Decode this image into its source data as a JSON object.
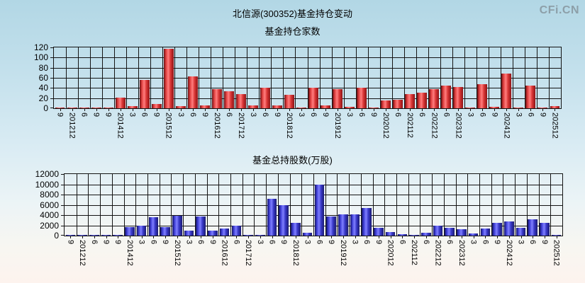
{
  "page": {
    "watermark": "CFi.CN",
    "title": "北信源(300352)基金持仓变动",
    "background_top_color": "#b2d7e5",
    "background_bottom_color": "#fdf3ee",
    "grid_color": "#141414"
  },
  "chart_data": [
    {
      "type": "bar",
      "title": "基金持仓家数",
      "ylabel": "",
      "xlabel": "",
      "grid": true,
      "legend": "none",
      "ylim": [
        0,
        120
      ],
      "yticks": [
        0,
        20,
        40,
        60,
        80,
        100,
        120
      ],
      "bar_gradient": [
        "#6a0e10",
        "#e04040",
        "#ff7d7d",
        "#d93535",
        "#8c1416"
      ],
      "bar_color": "#dd2222",
      "categories": [
        "9",
        "201212",
        "6",
        "9",
        "9",
        "201412",
        "3",
        "6",
        "9",
        "201512",
        "3",
        "6",
        "9",
        "201612",
        "6",
        "201712",
        "3",
        "6",
        "9",
        "201812",
        "3",
        "6",
        "9",
        "201912",
        "3",
        "6",
        "9",
        "202012",
        "6",
        "202112",
        "6",
        "202212",
        "6",
        "202312",
        "3",
        "6",
        "9",
        "202412",
        "3",
        "6",
        "9",
        "202512"
      ],
      "values": [
        1,
        1,
        1,
        1,
        2,
        21,
        4,
        56,
        8,
        117,
        4,
        63,
        6,
        37,
        33,
        28,
        5,
        40,
        5,
        27,
        2,
        41,
        5,
        38,
        3,
        41,
        2,
        16,
        17,
        28,
        31,
        38,
        45,
        42,
        2,
        48,
        3,
        68,
        2,
        45,
        1,
        4
      ]
    },
    {
      "type": "bar",
      "title": "基金总持股数(万股)",
      "ylabel": "",
      "xlabel": "",
      "grid": true,
      "legend": "none",
      "ylim": [
        0,
        12000
      ],
      "yticks": [
        0,
        2000,
        4000,
        6000,
        8000,
        10000,
        12000
      ],
      "bar_gradient": [
        "#131360",
        "#4040d8",
        "#8080ff",
        "#3838c8",
        "#1a1a70"
      ],
      "bar_color": "#3333cc",
      "categories": [
        "9",
        "201212",
        "6",
        "9",
        "9",
        "201412",
        "3",
        "6",
        "9",
        "201512",
        "3",
        "6",
        "9",
        "201612",
        "6",
        "201712",
        "3",
        "6",
        "9",
        "201812",
        "3",
        "6",
        "9",
        "201912",
        "3",
        "6",
        "9",
        "202012",
        "6",
        "202112",
        "6",
        "202212",
        "6",
        "202312",
        "3",
        "6",
        "9",
        "202412",
        "3",
        "6",
        "9",
        "202512"
      ],
      "values": [
        100,
        60,
        50,
        50,
        80,
        1600,
        2000,
        3600,
        1600,
        3900,
        1000,
        3700,
        950,
        1400,
        1900,
        200,
        200,
        7200,
        5900,
        2450,
        600,
        9900,
        3700,
        4100,
        4200,
        5400,
        1500,
        700,
        270,
        140,
        500,
        1900,
        1550,
        1200,
        400,
        1450,
        2500,
        2800,
        1550,
        3200,
        2500,
        180
      ]
    }
  ]
}
